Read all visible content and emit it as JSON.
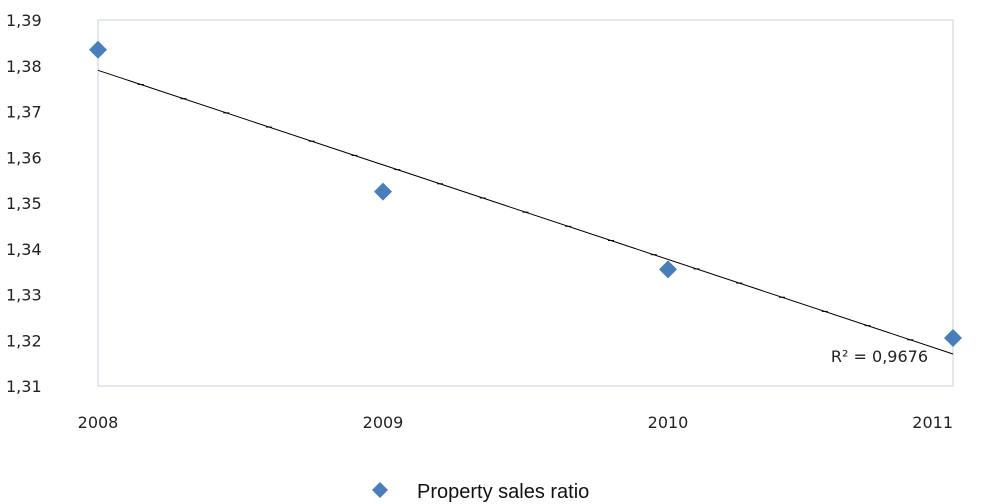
{
  "chart_data": {
    "type": "scatter",
    "x": [
      2008,
      2009,
      2010,
      2011
    ],
    "x_tick_labels": [
      "2008",
      "2009",
      "2010",
      "2011"
    ],
    "series": [
      {
        "name": "Property sales ratio",
        "color": "#4a7ebb",
        "marker": "diamond",
        "values": [
          1.3835,
          1.3525,
          1.3355,
          1.3205
        ]
      }
    ],
    "trendline": {
      "type": "linear",
      "start": [
        2008,
        1.379
      ],
      "end": [
        2011,
        1.317
      ],
      "color": "#000000",
      "r_squared_label": "R² = 0,9676"
    },
    "ylim": [
      1.31,
      1.39
    ],
    "y_ticks": [
      1.31,
      1.32,
      1.33,
      1.34,
      1.35,
      1.36,
      1.37,
      1.38,
      1.39
    ],
    "y_tick_labels": [
      "1,31",
      "1,32",
      "1,33",
      "1,34",
      "1,35",
      "1,36",
      "1,37",
      "1,38",
      "1,39"
    ],
    "xlim": [
      2008,
      2011
    ],
    "title": "",
    "xlabel": "",
    "ylabel": "",
    "grid": false,
    "legend_position": "bottom"
  }
}
